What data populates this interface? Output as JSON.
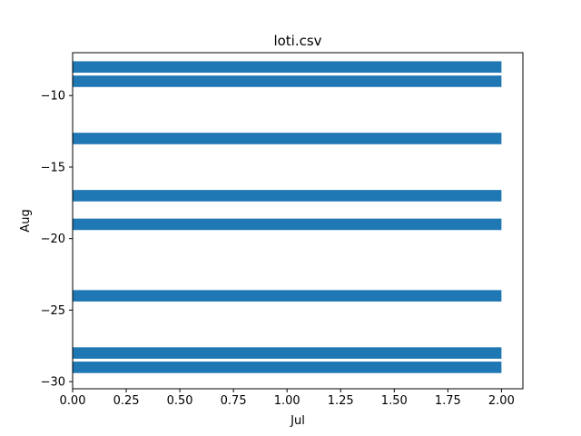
{
  "chart_data": {
    "type": "bar",
    "orientation": "horizontal",
    "title": "loti.csv",
    "xlabel": "Jul",
    "ylabel": "Aug",
    "xlim": [
      0.0,
      2.1
    ],
    "ylim": [
      -30.5,
      -7.0
    ],
    "xticks": [
      "0.00",
      "0.25",
      "0.50",
      "0.75",
      "1.00",
      "1.25",
      "1.50",
      "1.75",
      "2.00"
    ],
    "yticks": [
      "−10",
      "−15",
      "−20",
      "−25",
      "−30"
    ],
    "bar_height": 0.8,
    "series": [
      {
        "color": "#1f77b4",
        "points": [
          {
            "y": -8,
            "value": 2.0
          },
          {
            "y": -9,
            "value": 2.0
          },
          {
            "y": -13,
            "value": 2.0
          },
          {
            "y": -17,
            "value": 2.0
          },
          {
            "y": -19,
            "value": 2.0
          },
          {
            "y": -24,
            "value": 2.0
          },
          {
            "y": -28,
            "value": 2.0
          },
          {
            "y": -29,
            "value": 2.0
          }
        ]
      }
    ],
    "grid": false,
    "legend": "none"
  }
}
